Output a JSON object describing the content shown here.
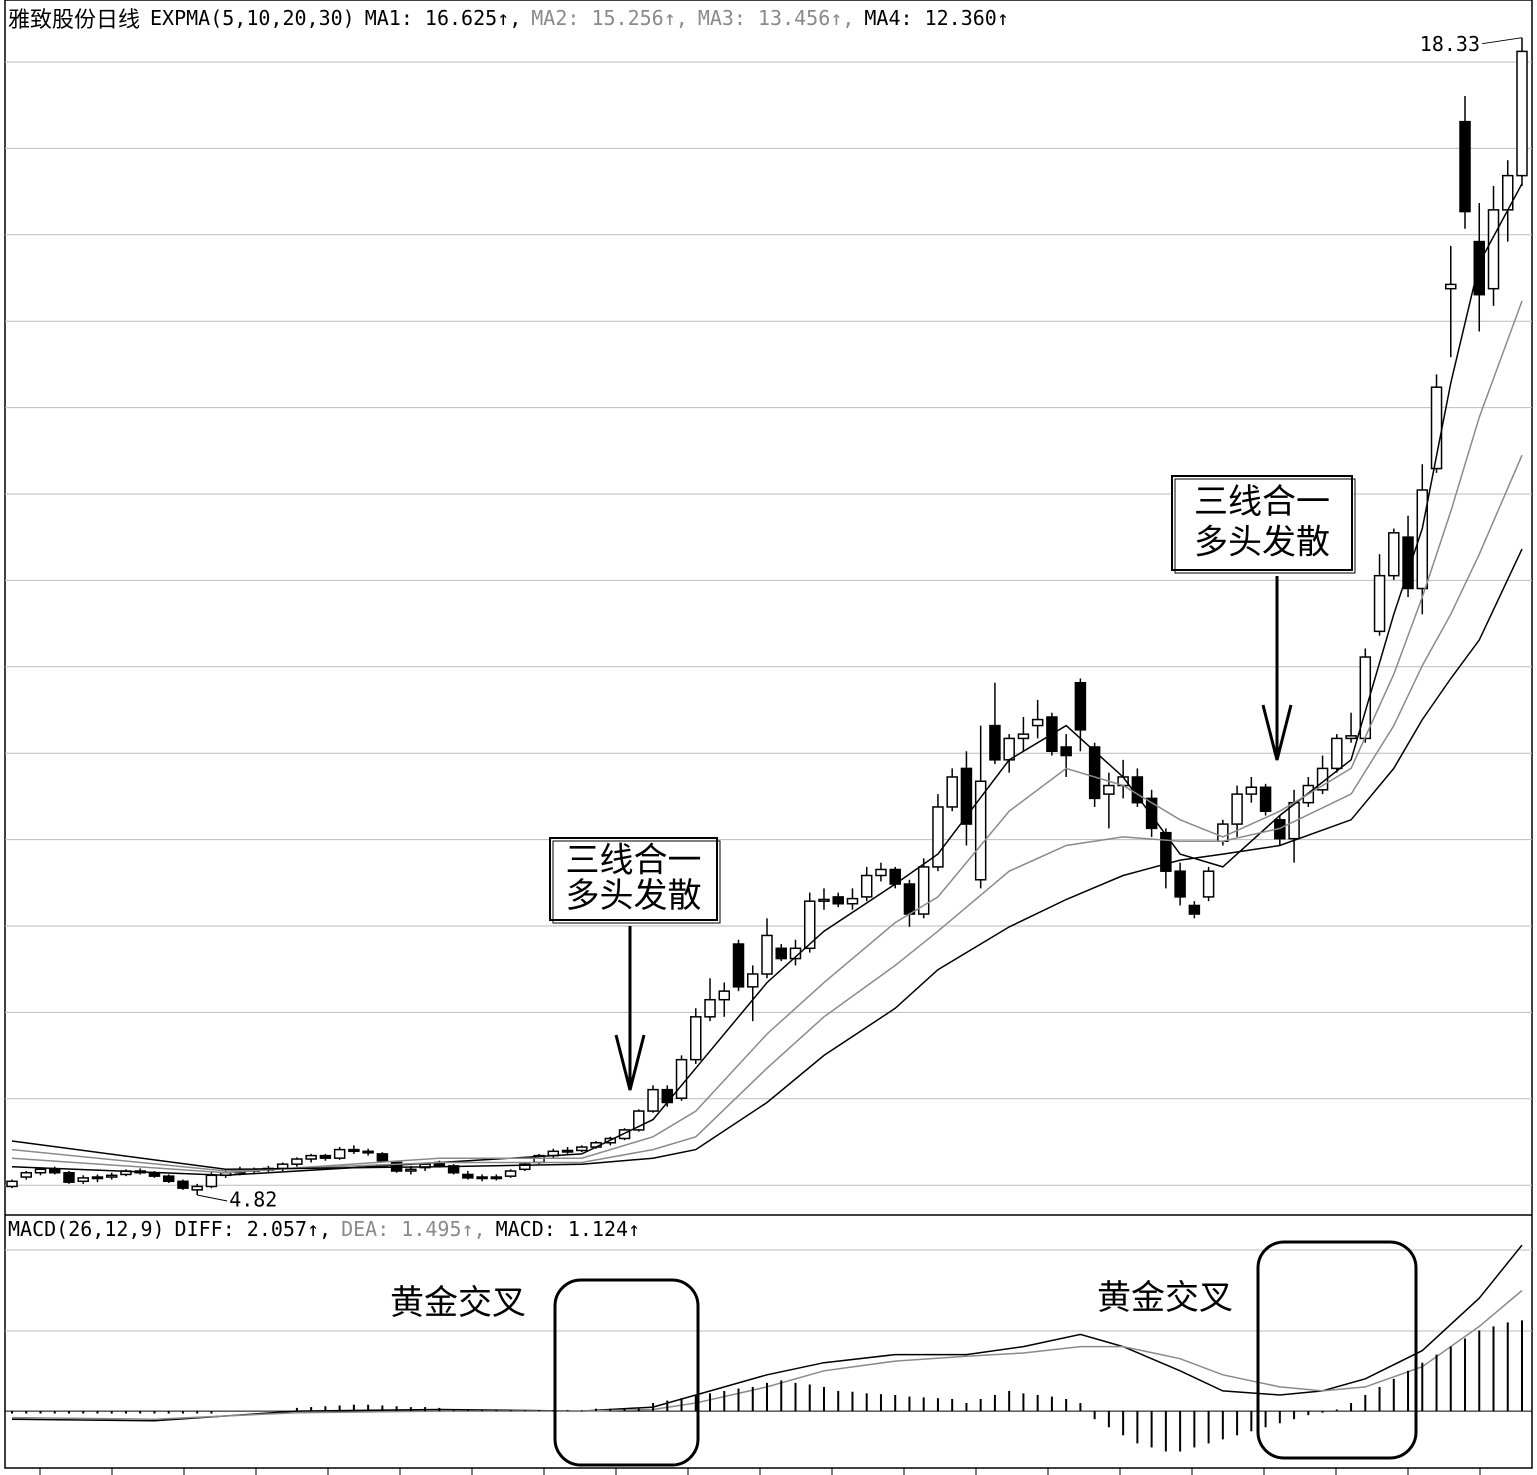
{
  "chart_data": [
    {
      "type": "candlestick",
      "title": "雅致股份日线",
      "indicator": "EXPMA(5,10,20,30)",
      "ylim": [
        4.61,
        18.77
      ],
      "high": 18.33,
      "low": 4.82,
      "candles": [
        [
          4.92,
          5.0,
          4.9,
          4.98
        ],
        [
          5.03,
          5.1,
          5.0,
          5.08
        ],
        [
          5.08,
          5.14,
          5.05,
          5.12
        ],
        [
          5.12,
          5.15,
          5.06,
          5.08
        ],
        [
          5.08,
          5.1,
          4.95,
          4.97
        ],
        [
          4.98,
          5.05,
          4.95,
          5.02
        ],
        [
          5.02,
          5.06,
          4.97,
          5.03
        ],
        [
          5.03,
          5.08,
          5.0,
          5.05
        ],
        [
          5.06,
          5.12,
          5.04,
          5.1
        ],
        [
          5.1,
          5.13,
          5.06,
          5.08
        ],
        [
          5.08,
          5.1,
          5.02,
          5.04
        ],
        [
          5.04,
          5.06,
          4.96,
          4.98
        ],
        [
          4.98,
          5.0,
          4.88,
          4.9
        ],
        [
          4.88,
          4.95,
          4.82,
          4.92
        ],
        [
          4.92,
          5.1,
          4.9,
          5.05
        ],
        [
          5.05,
          5.12,
          5.02,
          5.08
        ],
        [
          5.08,
          5.15,
          5.05,
          5.1
        ],
        [
          5.1,
          5.14,
          5.06,
          5.12
        ],
        [
          5.12,
          5.16,
          5.08,
          5.13
        ],
        [
          5.13,
          5.2,
          5.1,
          5.18
        ],
        [
          5.18,
          5.26,
          5.15,
          5.24
        ],
        [
          5.24,
          5.3,
          5.2,
          5.28
        ],
        [
          5.28,
          5.3,
          5.22,
          5.25
        ],
        [
          5.25,
          5.38,
          5.23,
          5.35
        ],
        [
          5.35,
          5.4,
          5.3,
          5.33
        ],
        [
          5.33,
          5.36,
          5.28,
          5.32
        ],
        [
          5.3,
          5.32,
          5.2,
          5.22
        ],
        [
          5.2,
          5.22,
          5.08,
          5.1
        ],
        [
          5.1,
          5.16,
          5.06,
          5.12
        ],
        [
          5.14,
          5.2,
          5.1,
          5.18
        ],
        [
          5.2,
          5.22,
          5.14,
          5.16
        ],
        [
          5.16,
          5.18,
          5.06,
          5.08
        ],
        [
          5.06,
          5.1,
          5.0,
          5.02
        ],
        [
          5.02,
          5.06,
          4.98,
          5.03
        ],
        [
          5.03,
          5.06,
          4.99,
          5.02
        ],
        [
          5.04,
          5.12,
          5.02,
          5.1
        ],
        [
          5.12,
          5.2,
          5.1,
          5.18
        ],
        [
          5.2,
          5.3,
          5.18,
          5.28
        ],
        [
          5.28,
          5.36,
          5.25,
          5.33
        ],
        [
          5.33,
          5.38,
          5.3,
          5.34
        ],
        [
          5.34,
          5.4,
          5.32,
          5.38
        ],
        [
          5.38,
          5.45,
          5.36,
          5.43
        ],
        [
          5.43,
          5.5,
          5.4,
          5.48
        ],
        [
          5.48,
          5.6,
          5.46,
          5.58
        ],
        [
          5.58,
          5.82,
          5.56,
          5.8
        ],
        [
          5.8,
          6.1,
          5.78,
          6.05
        ],
        [
          6.05,
          6.1,
          5.85,
          5.9
        ],
        [
          5.95,
          6.45,
          5.92,
          6.4
        ],
        [
          6.4,
          7.0,
          6.35,
          6.9
        ],
        [
          6.9,
          7.35,
          6.85,
          7.1
        ],
        [
          7.1,
          7.3,
          6.9,
          7.2
        ],
        [
          7.75,
          7.8,
          7.2,
          7.25
        ],
        [
          7.25,
          7.5,
          6.85,
          7.4
        ],
        [
          7.4,
          8.05,
          7.35,
          7.85
        ],
        [
          7.7,
          7.75,
          7.55,
          7.58
        ],
        [
          7.58,
          7.8,
          7.5,
          7.7
        ],
        [
          7.7,
          8.35,
          7.65,
          8.25
        ],
        [
          8.25,
          8.4,
          8.15,
          8.27
        ],
        [
          8.3,
          8.35,
          8.18,
          8.22
        ],
        [
          8.22,
          8.4,
          8.15,
          8.28
        ],
        [
          8.3,
          8.65,
          8.25,
          8.55
        ],
        [
          8.55,
          8.7,
          8.48,
          8.62
        ],
        [
          8.62,
          8.65,
          8.4,
          8.45
        ],
        [
          8.45,
          8.5,
          7.95,
          8.1
        ],
        [
          8.1,
          8.75,
          8.05,
          8.65
        ],
        [
          8.65,
          9.5,
          8.6,
          9.35
        ],
        [
          9.35,
          9.8,
          9.3,
          9.7
        ],
        [
          9.8,
          10.0,
          8.9,
          9.15
        ],
        [
          8.5,
          10.3,
          8.4,
          9.65
        ],
        [
          10.3,
          10.8,
          9.85,
          9.9
        ],
        [
          9.9,
          10.2,
          9.75,
          10.15
        ],
        [
          10.15,
          10.4,
          10.0,
          10.2
        ],
        [
          10.3,
          10.6,
          10.15,
          10.37
        ],
        [
          10.4,
          10.45,
          9.95,
          10.0
        ],
        [
          10.05,
          10.2,
          9.7,
          9.95
        ],
        [
          10.8,
          10.85,
          10.0,
          10.25
        ],
        [
          10.05,
          10.1,
          9.35,
          9.45
        ],
        [
          9.5,
          9.75,
          9.1,
          9.6
        ],
        [
          9.6,
          9.9,
          9.45,
          9.7
        ],
        [
          9.7,
          9.8,
          9.35,
          9.4
        ],
        [
          9.45,
          9.55,
          9.0,
          9.1
        ],
        [
          9.05,
          9.1,
          8.4,
          8.6
        ],
        [
          8.6,
          8.7,
          8.2,
          8.3
        ],
        [
          8.2,
          8.25,
          8.05,
          8.1
        ],
        [
          8.3,
          8.65,
          8.25,
          8.6
        ],
        [
          8.95,
          9.2,
          8.9,
          9.15
        ],
        [
          9.15,
          9.6,
          9.0,
          9.5
        ],
        [
          9.5,
          9.7,
          9.4,
          9.58
        ],
        [
          9.58,
          9.62,
          9.25,
          9.3
        ],
        [
          9.2,
          9.25,
          8.9,
          8.98
        ],
        [
          8.98,
          9.55,
          8.7,
          9.4
        ],
        [
          9.4,
          9.7,
          9.35,
          9.6
        ],
        [
          9.55,
          9.95,
          9.5,
          9.8
        ],
        [
          9.8,
          10.2,
          9.75,
          10.15
        ],
        [
          10.15,
          10.45,
          10.1,
          10.18
        ],
        [
          10.15,
          11.2,
          10.1,
          11.1
        ],
        [
          11.4,
          12.3,
          11.35,
          12.05
        ],
        [
          12.05,
          12.6,
          12.0,
          12.55
        ],
        [
          12.5,
          12.75,
          11.8,
          11.9
        ],
        [
          11.9,
          13.35,
          11.6,
          13.05
        ],
        [
          13.3,
          14.4,
          13.25,
          14.25
        ],
        [
          15.4,
          15.9,
          14.6,
          15.45
        ],
        [
          17.35,
          17.65,
          16.1,
          16.3
        ],
        [
          15.95,
          16.4,
          14.9,
          15.33
        ],
        [
          15.4,
          16.6,
          15.2,
          16.32
        ],
        [
          16.32,
          16.9,
          15.95,
          16.72
        ],
        [
          16.72,
          18.33,
          16.6,
          18.17
        ]
      ],
      "series": [
        {
          "name": "MA1",
          "label": "MA1: 16.625↑,",
          "color": "#000000",
          "x": [
            0,
            15,
            30,
            40,
            45,
            48,
            53,
            57,
            62,
            65,
            70,
            74,
            78,
            82,
            85,
            89,
            94,
            97,
            99,
            101,
            103,
            106
          ],
          "values": [
            5.15,
            5.05,
            5.2,
            5.3,
            5.7,
            6.3,
            7.3,
            7.9,
            8.45,
            8.8,
            9.9,
            10.3,
            9.7,
            8.8,
            8.65,
            9.25,
            9.9,
            11.6,
            12.6,
            14.3,
            15.7,
            16.625
          ]
        },
        {
          "name": "MA2",
          "label": "MA2: 15.256↑,",
          "color": "#8a8a8a",
          "x": [
            0,
            15,
            30,
            40,
            45,
            48,
            53,
            57,
            62,
            65,
            70,
            74,
            78,
            82,
            85,
            89,
            94,
            97,
            99,
            101,
            103,
            106
          ],
          "values": [
            5.25,
            5.08,
            5.25,
            5.25,
            5.5,
            5.8,
            6.7,
            7.3,
            8.0,
            8.3,
            9.3,
            9.8,
            9.6,
            9.2,
            9.0,
            9.3,
            9.8,
            10.9,
            11.8,
            12.8,
            13.9,
            15.256
          ]
        },
        {
          "name": "MA3",
          "label": "MA3: 13.456↑,",
          "color": "#8a8a8a",
          "x": [
            0,
            15,
            30,
            40,
            45,
            48,
            53,
            57,
            62,
            65,
            70,
            74,
            78,
            82,
            85,
            89,
            94,
            97,
            99,
            101,
            103,
            106
          ],
          "values": [
            5.35,
            5.1,
            5.2,
            5.2,
            5.35,
            5.5,
            6.3,
            6.9,
            7.5,
            7.9,
            8.6,
            8.9,
            9.0,
            8.95,
            8.95,
            9.1,
            9.5,
            10.3,
            11.0,
            11.6,
            12.3,
            13.456
          ]
        },
        {
          "name": "MA4",
          "label": "MA4: 12.360↑",
          "color": "#000000",
          "x": [
            0,
            15,
            30,
            40,
            45,
            48,
            53,
            57,
            62,
            65,
            70,
            74,
            78,
            82,
            85,
            89,
            94,
            97,
            99,
            101,
            103,
            106
          ],
          "values": [
            5.45,
            5.12,
            5.15,
            5.18,
            5.25,
            5.35,
            5.9,
            6.45,
            7.0,
            7.45,
            7.95,
            8.27,
            8.55,
            8.73,
            8.8,
            8.9,
            9.2,
            9.8,
            10.37,
            10.85,
            11.3,
            12.36
          ]
        }
      ],
      "annotations": [
        [
          "三线合一",
          "多头发散"
        ],
        [
          "三线合一",
          "多头发散"
        ]
      ]
    },
    {
      "type": "macd",
      "title": "MACD(26,12,9)",
      "ylim": [
        -0.68,
        2.43
      ],
      "series": [
        {
          "name": "DIFF",
          "label": "DIFF: 2.057↑,",
          "color": "#000000",
          "x": [
            0,
            10,
            20,
            30,
            40,
            45,
            48,
            53,
            57,
            62,
            67,
            71,
            75,
            78,
            82,
            85,
            89,
            92,
            95,
            99,
            103,
            106
          ],
          "values": [
            -0.1,
            -0.12,
            0.0,
            0.02,
            0.0,
            0.05,
            0.2,
            0.45,
            0.6,
            0.7,
            0.7,
            0.8,
            0.95,
            0.8,
            0.5,
            0.25,
            0.2,
            0.25,
            0.4,
            0.75,
            1.4,
            2.057
          ]
        },
        {
          "name": "DEA",
          "label": "DEA: 1.495↑,",
          "color": "#8a8a8a",
          "x": [
            0,
            10,
            20,
            30,
            40,
            45,
            48,
            53,
            57,
            62,
            67,
            71,
            75,
            78,
            82,
            85,
            89,
            92,
            95,
            99,
            103,
            106
          ],
          "values": [
            -0.08,
            -0.1,
            -0.02,
            0.0,
            0.0,
            0.02,
            0.1,
            0.3,
            0.5,
            0.62,
            0.68,
            0.72,
            0.8,
            0.8,
            0.65,
            0.45,
            0.3,
            0.25,
            0.3,
            0.55,
            1.05,
            1.495
          ]
        },
        {
          "name": "MACD",
          "label": "MACD: 1.124↑",
          "color": "#000000",
          "values": [
            -0.03,
            -0.03,
            -0.03,
            -0.03,
            -0.03,
            -0.03,
            -0.03,
            -0.03,
            -0.03,
            -0.03,
            -0.03,
            -0.03,
            -0.03,
            -0.03,
            -0.03,
            0,
            0,
            0,
            0,
            0,
            0.04,
            0.05,
            0.06,
            0.07,
            0.08,
            0.08,
            0.07,
            0.06,
            0.05,
            0.05,
            0.04,
            0.01,
            0.01,
            0.01,
            0.01,
            0.01,
            0.01,
            0.01,
            0.01,
            0.01,
            0.01,
            0.03,
            0.03,
            0.03,
            0.03,
            0.1,
            0.13,
            0.16,
            0.19,
            0.22,
            0.25,
            0.28,
            0.3,
            0.35,
            0.38,
            0.35,
            0.33,
            0.3,
            0.25,
            0.24,
            0.22,
            0.21,
            0.2,
            0.18,
            0.17,
            0.16,
            0.15,
            0.1,
            0.15,
            0.2,
            0.25,
            0.22,
            0.2,
            0.18,
            0.15,
            0.1,
            -0.1,
            -0.2,
            -0.3,
            -0.4,
            -0.45,
            -0.5,
            -0.5,
            -0.45,
            -0.4,
            -0.35,
            -0.3,
            -0.25,
            -0.2,
            -0.15,
            -0.1,
            -0.05,
            -0.02,
            0.02,
            0.1,
            0.2,
            0.3,
            0.4,
            0.5,
            0.6,
            0.7,
            0.8,
            0.9,
            1.0,
            1.05,
            1.1,
            1.124
          ]
        }
      ],
      "annotations": [
        "黄金交叉",
        "黄金交叉"
      ]
    }
  ]
}
